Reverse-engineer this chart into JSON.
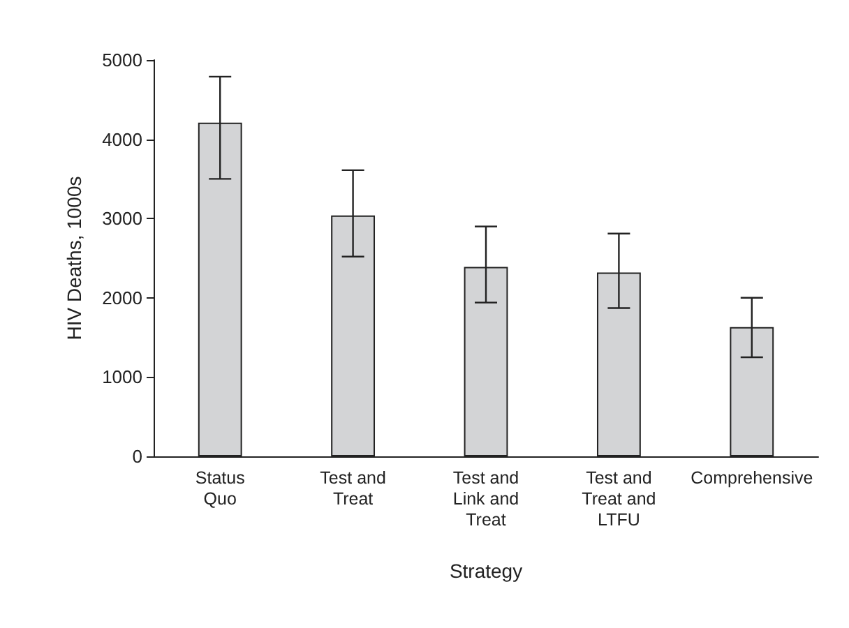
{
  "chart_data": {
    "type": "bar",
    "xlabel": "Strategy",
    "ylabel": "HIV Deaths, 1000s",
    "categories": [
      "Status Quo",
      "Test and Treat",
      "Test and Link and Treat",
      "Test and Treat and LTFU",
      "Comprehensive"
    ],
    "values": [
      4210,
      3040,
      2390,
      2320,
      1630
    ],
    "errors": [
      [
        3500,
        4790
      ],
      [
        2520,
        3610
      ],
      [
        1940,
        2900
      ],
      [
        1870,
        2810
      ],
      [
        1250,
        2000
      ]
    ],
    "color": "#d3d4d6",
    "ylim": [
      0,
      5000
    ],
    "yticks": [
      0,
      1000,
      2000,
      3000,
      4000,
      5000
    ],
    "grid": false
  }
}
